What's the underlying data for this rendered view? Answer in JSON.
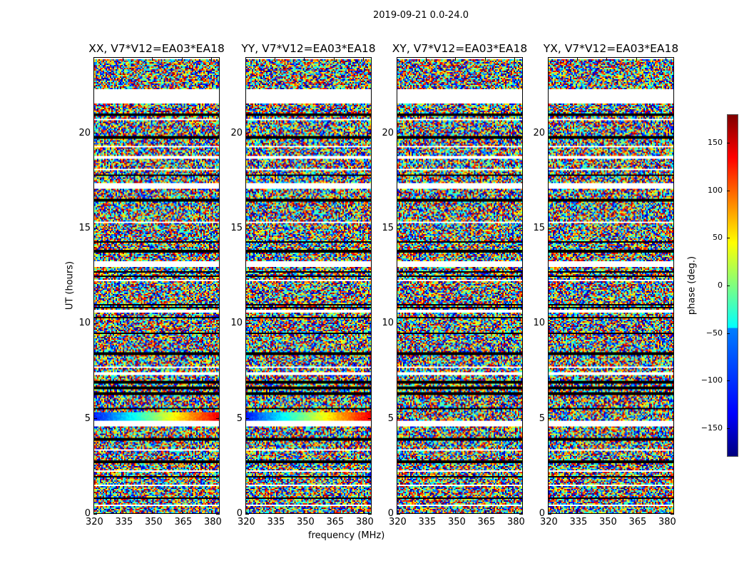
{
  "chart_data": {
    "type": "heatmap",
    "title": "2019-09-21 0.0-24.0",
    "xlabel": "frequency (MHz)",
    "ylabel": "UT (hours)",
    "xlim": [
      320,
      384
    ],
    "ylim": [
      0,
      24
    ],
    "xticks": [
      "320",
      "335",
      "350",
      "365",
      "380"
    ],
    "xtick_values": [
      320,
      335,
      350,
      365,
      380
    ],
    "yticks": [
      "0",
      "5",
      "10",
      "15",
      "20"
    ],
    "ytick_values": [
      0,
      5,
      10,
      15,
      20
    ],
    "panels": [
      {
        "title": "XX, V7*V12=EA03*EA18",
        "coherent_band_hours": [
          4.9,
          5.3
        ]
      },
      {
        "title": "YY, V7*V12=EA03*EA18",
        "coherent_band_hours": [
          4.9,
          5.3
        ]
      },
      {
        "title": "XY, V7*V12=EA03*EA18"
      },
      {
        "title": "YX, V7*V12=EA03*EA18"
      }
    ],
    "flagged_gaps_hours": [
      [
        0.05,
        0.1
      ],
      [
        0.35,
        0.45
      ],
      [
        1.4,
        1.5
      ],
      [
        2.2,
        2.25
      ],
      [
        3.3,
        3.35
      ],
      [
        4.55,
        4.85
      ],
      [
        5.9,
        5.95
      ],
      [
        7.3,
        7.4
      ],
      [
        7.65,
        7.75
      ],
      [
        10.6,
        10.7
      ],
      [
        11.3,
        11.35
      ],
      [
        12.2,
        12.3
      ],
      [
        13.0,
        13.25
      ],
      [
        15.3,
        15.4
      ],
      [
        16.1,
        16.15
      ],
      [
        17.1,
        17.4
      ],
      [
        18.1,
        18.15
      ],
      [
        18.7,
        18.8
      ],
      [
        19.3,
        19.35
      ],
      [
        20.7,
        20.8
      ],
      [
        21.6,
        22.35
      ],
      [
        23.9,
        24.0
      ]
    ],
    "scan_boundaries_hours": [
      0.8,
      1.9,
      2.7,
      3.9,
      5.5,
      6.3,
      6.6,
      6.9,
      8.4,
      9.5,
      10.3,
      10.85,
      11.0,
      12.5,
      12.7,
      13.8,
      14.3,
      16.5,
      17.8,
      19.8,
      21.0
    ],
    "colorbar": {
      "label": "phase (deg.)",
      "range": [
        -180,
        180
      ],
      "ticks": [
        "150",
        "100",
        "50",
        "0",
        "−50",
        "−100",
        "−150"
      ],
      "tick_values": [
        150,
        100,
        50,
        0,
        -50,
        -100,
        -150
      ],
      "colormap": "jet"
    }
  }
}
